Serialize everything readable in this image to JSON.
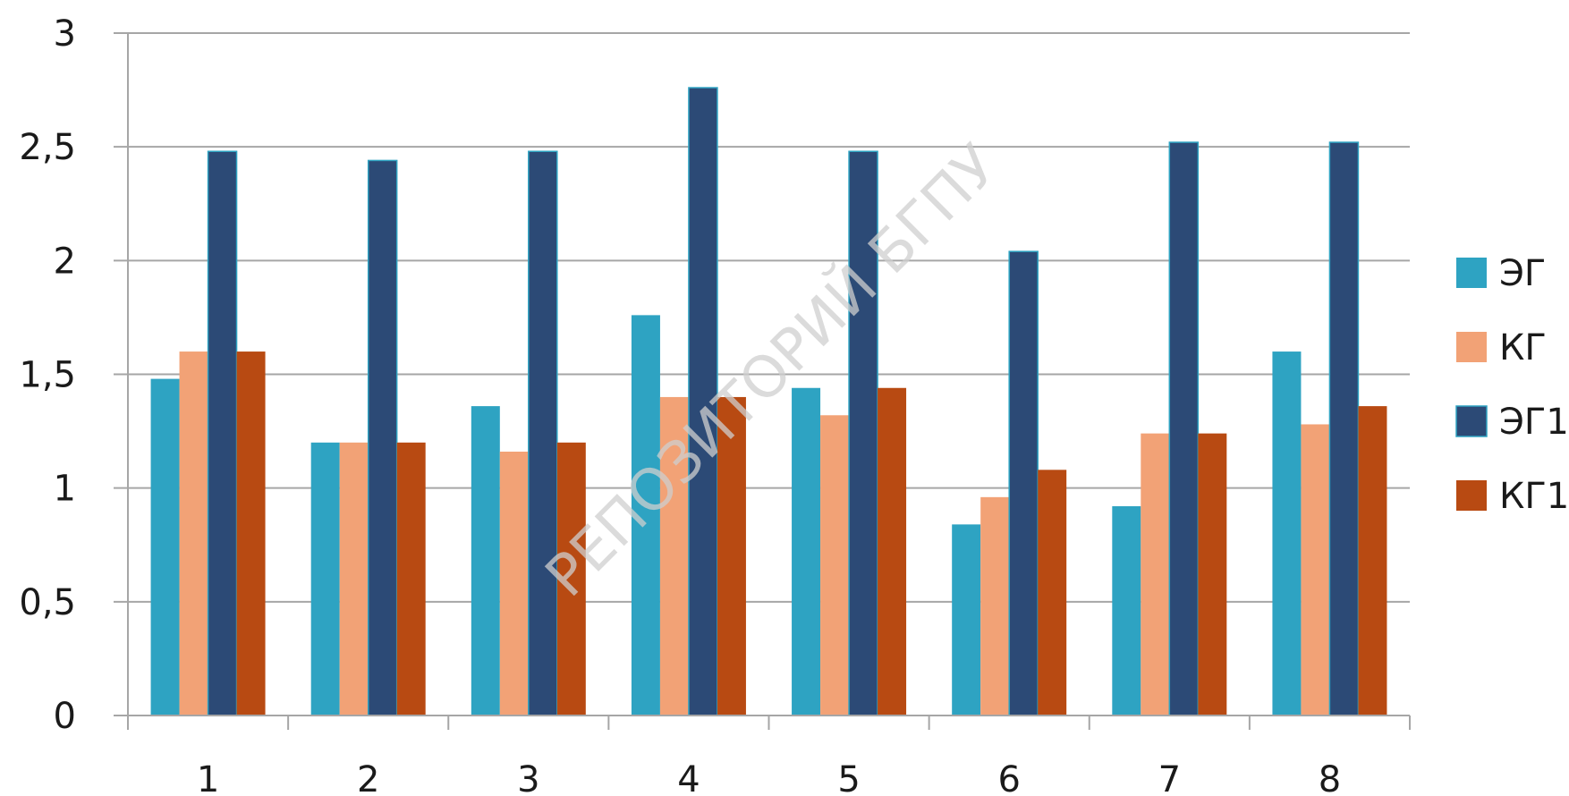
{
  "watermark": "РЕПОЗИТОРИЙ БГПУ",
  "chart_data": {
    "type": "bar",
    "categories": [
      "1",
      "2",
      "3",
      "4",
      "5",
      "6",
      "7",
      "8"
    ],
    "series": [
      {
        "name": "ЭГ",
        "color": "#2ea3c2",
        "values": [
          1.48,
          1.2,
          1.36,
          1.76,
          1.44,
          0.84,
          0.92,
          1.6
        ]
      },
      {
        "name": "КГ",
        "color": "#f2a276",
        "values": [
          1.6,
          1.2,
          1.16,
          1.4,
          1.32,
          0.96,
          1.24,
          1.28
        ]
      },
      {
        "name": "ЭГ1",
        "color": "#2c4a76",
        "values": [
          2.48,
          2.44,
          2.48,
          2.76,
          2.48,
          2.04,
          2.52,
          2.52
        ]
      },
      {
        "name": "КГ1",
        "color": "#b84a12",
        "values": [
          1.6,
          1.2,
          1.2,
          1.4,
          1.44,
          1.08,
          1.24,
          1.36
        ]
      }
    ],
    "ylim": [
      0,
      3
    ],
    "yticks": [
      0,
      0.5,
      1,
      1.5,
      2,
      2.5,
      3
    ],
    "ytick_labels": [
      "0",
      "0,5",
      "1",
      "1,5",
      "2",
      "2,5",
      "3"
    ],
    "grid": true,
    "legend_position": "right",
    "title": "",
    "xlabel": "",
    "ylabel": ""
  }
}
